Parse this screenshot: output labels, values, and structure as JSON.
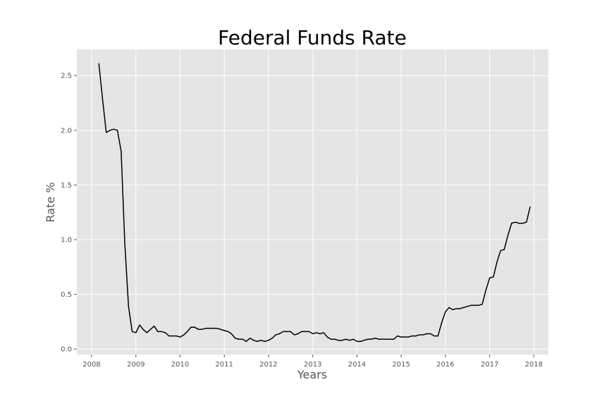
{
  "chart_data": {
    "type": "line",
    "title": "Federal Funds Rate",
    "xlabel": "Years",
    "ylabel": "Rate %",
    "xlim": [
      "2007-09-01",
      "2018-05-01"
    ],
    "ylim": [
      -0.05,
      2.74
    ],
    "grid": true,
    "colors": {
      "background": "#e5e5e5",
      "grid": "#ffffff",
      "line": "#000000",
      "text": "#555555"
    },
    "xticks": [
      {
        "value": "2008-01-01",
        "label": "2008"
      },
      {
        "value": "2009-01-01",
        "label": "2009"
      },
      {
        "value": "2010-01-01",
        "label": "2010"
      },
      {
        "value": "2011-01-01",
        "label": "2011"
      },
      {
        "value": "2012-01-01",
        "label": "2012"
      },
      {
        "value": "2013-01-01",
        "label": "2013"
      },
      {
        "value": "2014-01-01",
        "label": "2014"
      },
      {
        "value": "2015-01-01",
        "label": "2015"
      },
      {
        "value": "2016-01-01",
        "label": "2016"
      },
      {
        "value": "2017-01-01",
        "label": "2017"
      },
      {
        "value": "2018-01-01",
        "label": "2018"
      }
    ],
    "yticks": [
      {
        "value": 0.0,
        "label": "0.0"
      },
      {
        "value": 0.5,
        "label": "0.5"
      },
      {
        "value": 1.0,
        "label": "1.0"
      },
      {
        "value": 1.5,
        "label": "1.5"
      },
      {
        "value": 2.0,
        "label": "2.0"
      },
      {
        "value": 2.5,
        "label": "2.5"
      }
    ],
    "series": [
      {
        "x": [
          "2008-03-01",
          "2008-04-01",
          "2008-05-01",
          "2008-06-01",
          "2008-07-01",
          "2008-08-01",
          "2008-09-01",
          "2008-10-01",
          "2008-11-01",
          "2008-12-01",
          "2009-01-01",
          "2009-02-01",
          "2009-03-01",
          "2009-04-01",
          "2009-05-01",
          "2009-06-01",
          "2009-07-01",
          "2009-08-01",
          "2009-09-01",
          "2009-10-01",
          "2009-11-01",
          "2009-12-01",
          "2010-01-01",
          "2010-02-01",
          "2010-03-01",
          "2010-04-01",
          "2010-05-01",
          "2010-06-01",
          "2010-07-01",
          "2010-08-01",
          "2010-09-01",
          "2010-10-01",
          "2010-11-01",
          "2010-12-01",
          "2011-01-01",
          "2011-02-01",
          "2011-03-01",
          "2011-04-01",
          "2011-05-01",
          "2011-06-01",
          "2011-07-01",
          "2011-08-01",
          "2011-09-01",
          "2011-10-01",
          "2011-11-01",
          "2011-12-01",
          "2012-01-01",
          "2012-02-01",
          "2012-03-01",
          "2012-04-01",
          "2012-05-01",
          "2012-06-01",
          "2012-07-01",
          "2012-08-01",
          "2012-09-01",
          "2012-10-01",
          "2012-11-01",
          "2012-12-01",
          "2013-01-01",
          "2013-02-01",
          "2013-03-01",
          "2013-04-01",
          "2013-05-01",
          "2013-06-01",
          "2013-07-01",
          "2013-08-01",
          "2013-09-01",
          "2013-10-01",
          "2013-11-01",
          "2013-12-01",
          "2014-01-01",
          "2014-02-01",
          "2014-03-01",
          "2014-04-01",
          "2014-05-01",
          "2014-06-01",
          "2014-07-01",
          "2014-08-01",
          "2014-09-01",
          "2014-10-01",
          "2014-11-01",
          "2014-12-01",
          "2015-01-01",
          "2015-02-01",
          "2015-03-01",
          "2015-04-01",
          "2015-05-01",
          "2015-06-01",
          "2015-07-01",
          "2015-08-01",
          "2015-09-01",
          "2015-10-01",
          "2015-11-01",
          "2015-12-01",
          "2016-01-01",
          "2016-02-01",
          "2016-03-01",
          "2016-04-01",
          "2016-05-01",
          "2016-06-01",
          "2016-07-01",
          "2016-08-01",
          "2016-09-01",
          "2016-10-01",
          "2016-11-01",
          "2016-12-01",
          "2017-01-01",
          "2017-02-01",
          "2017-03-01",
          "2017-04-01",
          "2017-05-01",
          "2017-06-01",
          "2017-07-01",
          "2017-08-01",
          "2017-09-01",
          "2017-10-01",
          "2017-11-01",
          "2017-12-01"
        ],
        "values": [
          2.61,
          2.28,
          1.98,
          2.0,
          2.01,
          2.0,
          1.81,
          0.97,
          0.39,
          0.16,
          0.15,
          0.22,
          0.18,
          0.15,
          0.18,
          0.21,
          0.16,
          0.16,
          0.15,
          0.12,
          0.12,
          0.12,
          0.11,
          0.13,
          0.16,
          0.2,
          0.2,
          0.18,
          0.18,
          0.19,
          0.19,
          0.19,
          0.19,
          0.18,
          0.17,
          0.16,
          0.14,
          0.1,
          0.09,
          0.09,
          0.07,
          0.1,
          0.08,
          0.07,
          0.08,
          0.07,
          0.08,
          0.1,
          0.13,
          0.14,
          0.16,
          0.16,
          0.16,
          0.13,
          0.14,
          0.16,
          0.16,
          0.16,
          0.14,
          0.15,
          0.14,
          0.15,
          0.11,
          0.09,
          0.09,
          0.08,
          0.08,
          0.09,
          0.08,
          0.09,
          0.07,
          0.07,
          0.08,
          0.09,
          0.09,
          0.1,
          0.09,
          0.09,
          0.09,
          0.09,
          0.09,
          0.12,
          0.11,
          0.11,
          0.11,
          0.12,
          0.12,
          0.13,
          0.13,
          0.14,
          0.14,
          0.12,
          0.12,
          0.24,
          0.34,
          0.38,
          0.36,
          0.37,
          0.37,
          0.38,
          0.39,
          0.4,
          0.4,
          0.4,
          0.41,
          0.54,
          0.65,
          0.66,
          0.79,
          0.9,
          0.91,
          1.04,
          1.15,
          1.16,
          1.15,
          1.15,
          1.16,
          1.3
        ]
      }
    ]
  }
}
